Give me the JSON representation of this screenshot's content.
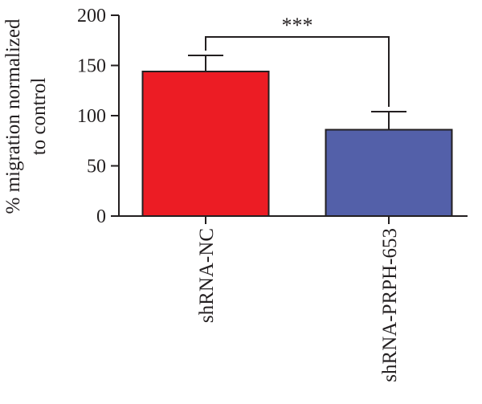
{
  "chart_data": {
    "type": "bar",
    "title": "",
    "xlabel": "",
    "ylabel_lines": [
      "% migration normalized",
      "to control"
    ],
    "ylim": [
      0,
      200
    ],
    "yticks": [
      0,
      50,
      100,
      150,
      200
    ],
    "categories": [
      "shRNA-NC",
      "shRNA-PRPH-653"
    ],
    "values": [
      144,
      86
    ],
    "errors": [
      16,
      18
    ],
    "colors": [
      "#ec1c24",
      "#5360a9"
    ],
    "significance": {
      "label": "***",
      "between": [
        0,
        1
      ]
    },
    "grid": false,
    "legend": "none"
  }
}
